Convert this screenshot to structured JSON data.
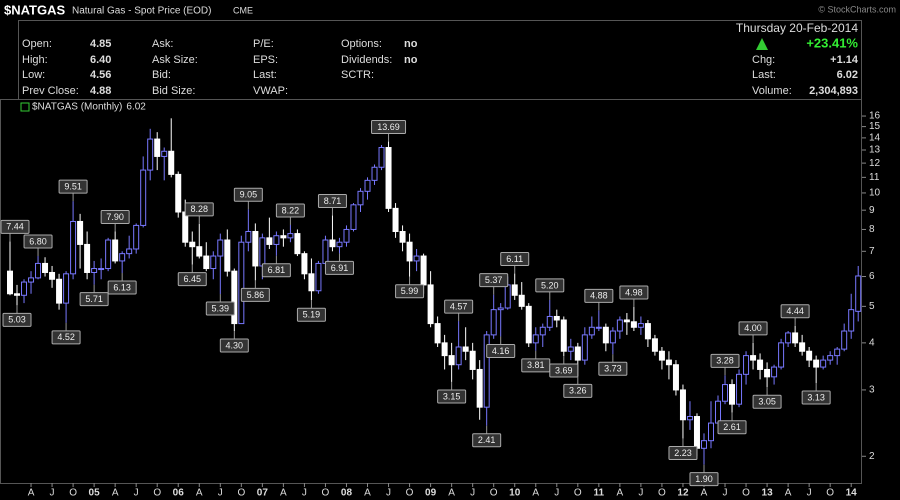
{
  "header": {
    "symbol": "$NATGAS",
    "name": "Natural Gas - Spot Price (EOD)",
    "exchange": "CME",
    "copyright": "© StockCharts.com",
    "date": "Thursday 20-Feb-2014",
    "change_pct": "+23.41%",
    "quote": [
      [
        {
          "label": "Open:",
          "value": "4.85"
        },
        {
          "label": "High:",
          "value": "6.40"
        },
        {
          "label": "Low:",
          "value": "4.56"
        },
        {
          "label": "Prev Close:",
          "value": "4.88"
        }
      ],
      [
        {
          "label": "Ask:"
        },
        {
          "label": "Ask Size:"
        },
        {
          "label": "Bid:"
        },
        {
          "label": "Bid Size:"
        }
      ],
      [
        {
          "label": "P/E:"
        },
        {
          "label": "EPS:"
        },
        {
          "label": "Last:"
        },
        {
          "label": "VWAP:"
        }
      ],
      [
        {
          "label": "Options:",
          "value": "no"
        },
        {
          "label": "Dividends:",
          "value": "no"
        },
        {
          "label": "SCTR:"
        }
      ]
    ],
    "summary": [
      {
        "label": "Chg:",
        "value": "+1.14"
      },
      {
        "label": "Last:",
        "value": "6.02"
      },
      {
        "label": "Volume:",
        "value": "2,304,893"
      }
    ]
  },
  "chart_data": {
    "type": "candlestick",
    "log_scale": true,
    "grid": false,
    "x": [
      "2004-01",
      "2004-02",
      "2004-03",
      "2004-04",
      "2004-05",
      "2004-06",
      "2004-07",
      "2004-08",
      "2004-09",
      "2004-10",
      "2004-11",
      "2004-12",
      "2005-01",
      "2005-02",
      "2005-03",
      "2005-04",
      "2005-05",
      "2005-06",
      "2005-07",
      "2005-08",
      "2005-09",
      "2005-10",
      "2005-11",
      "2005-12",
      "2006-01",
      "2006-02",
      "2006-03",
      "2006-04",
      "2006-05",
      "2006-06",
      "2006-07",
      "2006-08",
      "2006-09",
      "2006-10",
      "2006-11",
      "2006-12",
      "2007-01",
      "2007-02",
      "2007-03",
      "2007-04",
      "2007-05",
      "2007-06",
      "2007-07",
      "2007-08",
      "2007-09",
      "2007-10",
      "2007-11",
      "2007-12",
      "2008-01",
      "2008-02",
      "2008-03",
      "2008-04",
      "2008-05",
      "2008-06",
      "2008-07",
      "2008-08",
      "2008-09",
      "2008-10",
      "2008-11",
      "2008-12",
      "2009-01",
      "2009-02",
      "2009-03",
      "2009-04",
      "2009-05",
      "2009-06",
      "2009-07",
      "2009-08",
      "2009-09",
      "2009-10",
      "2009-11",
      "2009-12",
      "2010-01",
      "2010-02",
      "2010-03",
      "2010-04",
      "2010-05",
      "2010-06",
      "2010-07",
      "2010-08",
      "2010-09",
      "2010-10",
      "2010-11",
      "2010-12",
      "2011-01",
      "2011-02",
      "2011-03",
      "2011-04",
      "2011-05",
      "2011-06",
      "2011-07",
      "2011-08",
      "2011-09",
      "2011-10",
      "2011-11",
      "2011-12",
      "2012-01",
      "2012-02",
      "2012-03",
      "2012-04",
      "2012-05",
      "2012-06",
      "2012-07",
      "2012-08",
      "2012-09",
      "2012-10",
      "2012-11",
      "2012-12",
      "2013-01",
      "2013-02",
      "2013-03",
      "2013-04",
      "2013-05",
      "2013-06",
      "2013-07",
      "2013-08",
      "2013-09",
      "2013-10",
      "2013-11",
      "2013-12",
      "2014-01",
      "2014-02"
    ],
    "series": [
      {
        "name": "$NATGAS (Monthly)",
        "up_color": "#7878ff",
        "down_color": "#ffffff",
        "legend_color": "#33cc33",
        "open": [
          6.2,
          5.4,
          5.35,
          5.8,
          5.95,
          6.5,
          6.15,
          5.9,
          5.1,
          6.1,
          8.4,
          7.3,
          6.15,
          6.3,
          6.3,
          7.5,
          6.6,
          6.9,
          7.1,
          8.2,
          11.5,
          13.9,
          12.5,
          12.9,
          11.2,
          8.9,
          7.4,
          7.2,
          6.8,
          6.3,
          6.8,
          7.5,
          6.2,
          4.5,
          7.4,
          7.9,
          6.4,
          7.6,
          7.3,
          7.7,
          7.6,
          7.8,
          6.9,
          6.1,
          5.5,
          6.5,
          7.5,
          7.2,
          7.4,
          8.0,
          9.3,
          10.1,
          10.8,
          11.7,
          13.2,
          9.1,
          7.9,
          7.4,
          6.6,
          6.8,
          5.7,
          4.5,
          4.0,
          3.7,
          3.5,
          3.9,
          3.8,
          3.4,
          2.7,
          4.2,
          4.9,
          4.95,
          5.7,
          5.35,
          5.0,
          4.0,
          4.2,
          4.4,
          4.7,
          4.6,
          3.8,
          3.9,
          3.6,
          4.2,
          4.4,
          4.4,
          4.0,
          4.3,
          4.6,
          4.55,
          4.4,
          4.5,
          4.1,
          3.8,
          3.6,
          3.5,
          3.0,
          2.5,
          2.55,
          2.1,
          2.2,
          2.45,
          2.8,
          3.1,
          2.75,
          3.3,
          3.7,
          3.6,
          3.4,
          3.25,
          3.45,
          4.0,
          4.25,
          4.0,
          3.8,
          3.6,
          3.45,
          3.6,
          3.7,
          3.85,
          4.3,
          4.85
        ],
        "high": [
          7.44,
          5.7,
          5.9,
          6.2,
          6.8,
          6.75,
          6.4,
          6.1,
          6.2,
          9.51,
          8.8,
          7.9,
          6.6,
          6.7,
          7.6,
          7.9,
          7.0,
          7.7,
          8.3,
          12.5,
          14.8,
          14.5,
          13.2,
          15.78,
          11.4,
          9.6,
          7.9,
          8.28,
          7.4,
          7.0,
          7.8,
          8.0,
          6.3,
          7.7,
          9.05,
          8.3,
          7.8,
          8.6,
          7.9,
          8.0,
          8.22,
          8.0,
          7.0,
          6.7,
          6.6,
          7.7,
          8.71,
          7.6,
          8.2,
          9.4,
          10.3,
          11.0,
          11.9,
          13.4,
          13.69,
          9.4,
          8.2,
          7.8,
          7.1,
          6.9,
          6.2,
          4.7,
          4.2,
          4.0,
          4.57,
          4.4,
          4.0,
          3.6,
          4.3,
          5.37,
          5.1,
          6.0,
          6.11,
          5.8,
          5.1,
          4.4,
          4.5,
          5.2,
          4.9,
          4.7,
          4.1,
          4.0,
          4.4,
          4.7,
          4.88,
          4.5,
          4.4,
          4.7,
          4.8,
          4.98,
          4.7,
          4.6,
          4.2,
          3.9,
          3.8,
          3.6,
          3.1,
          2.8,
          2.6,
          2.3,
          2.8,
          2.9,
          3.28,
          3.2,
          3.4,
          3.8,
          4.0,
          3.75,
          3.55,
          3.5,
          4.1,
          4.3,
          4.44,
          4.2,
          3.9,
          3.7,
          3.7,
          3.8,
          3.9,
          4.5,
          5.4,
          6.4
        ],
        "low": [
          5.35,
          5.03,
          5.1,
          5.4,
          5.9,
          6.0,
          5.6,
          4.9,
          4.52,
          5.9,
          6.3,
          5.9,
          5.71,
          5.9,
          6.2,
          6.5,
          6.13,
          6.7,
          6.9,
          8.1,
          10.8,
          11.5,
          10.8,
          11.0,
          8.6,
          7.2,
          6.45,
          6.7,
          6.2,
          5.9,
          5.39,
          6.0,
          4.3,
          4.5,
          7.0,
          5.86,
          5.9,
          7.1,
          6.81,
          7.2,
          7.4,
          6.8,
          5.9,
          5.19,
          5.4,
          6.3,
          7.0,
          6.91,
          7.2,
          7.9,
          8.9,
          9.6,
          10.5,
          11.5,
          8.9,
          7.6,
          7.0,
          5.99,
          6.2,
          5.4,
          4.4,
          3.9,
          3.4,
          3.15,
          3.4,
          3.6,
          3.2,
          2.5,
          2.41,
          4.1,
          4.16,
          4.9,
          5.2,
          4.9,
          3.9,
          3.81,
          3.9,
          4.3,
          4.4,
          3.69,
          3.6,
          3.26,
          3.5,
          4.1,
          4.3,
          3.8,
          3.73,
          4.1,
          4.2,
          4.3,
          4.2,
          3.9,
          3.7,
          3.4,
          3.2,
          2.9,
          2.23,
          2.35,
          2.0,
          1.9,
          2.1,
          2.3,
          2.75,
          2.61,
          2.7,
          3.1,
          3.4,
          3.2,
          3.05,
          3.1,
          3.4,
          3.9,
          3.9,
          3.7,
          3.45,
          3.13,
          3.4,
          3.5,
          3.5,
          3.8,
          4.1,
          4.56
        ],
        "close": [
          5.4,
          5.35,
          5.8,
          5.95,
          6.5,
          6.15,
          5.9,
          5.1,
          6.1,
          8.4,
          7.3,
          6.15,
          6.3,
          6.3,
          7.5,
          6.6,
          6.9,
          7.1,
          8.2,
          11.5,
          13.9,
          12.5,
          12.9,
          11.2,
          8.9,
          7.4,
          7.2,
          6.8,
          6.3,
          6.8,
          7.5,
          6.2,
          4.5,
          7.4,
          7.9,
          6.4,
          7.6,
          7.3,
          7.7,
          7.6,
          7.8,
          6.9,
          6.1,
          5.5,
          6.5,
          7.5,
          7.2,
          7.4,
          8.0,
          9.3,
          10.1,
          10.8,
          11.7,
          13.2,
          9.1,
          7.9,
          7.4,
          6.6,
          6.8,
          5.7,
          4.5,
          4.0,
          3.7,
          3.5,
          3.9,
          3.8,
          3.4,
          2.7,
          4.2,
          4.9,
          4.95,
          5.7,
          5.35,
          5.0,
          4.0,
          4.2,
          4.4,
          4.7,
          4.6,
          3.8,
          3.9,
          3.6,
          4.2,
          4.4,
          4.4,
          4.0,
          4.3,
          4.6,
          4.55,
          4.4,
          4.5,
          4.1,
          3.8,
          3.6,
          3.5,
          3.0,
          2.5,
          2.55,
          2.1,
          2.2,
          2.45,
          2.8,
          3.1,
          2.75,
          3.3,
          3.7,
          3.6,
          3.4,
          3.25,
          3.45,
          4.0,
          4.25,
          4.0,
          3.8,
          3.6,
          3.45,
          3.6,
          3.7,
          3.85,
          4.3,
          4.9,
          6.02
        ]
      }
    ],
    "annotations": {
      "x": [
        "2004-01",
        "2004-02",
        "2004-05",
        "2004-09",
        "2004-10",
        "2005-01",
        "2005-04",
        "2005-05",
        "2006-03",
        "2006-04",
        "2006-07",
        "2006-09",
        "2006-11",
        "2006-12",
        "2007-03",
        "2007-05",
        "2007-08",
        "2007-11",
        "2007-12",
        "2008-07",
        "2008-10",
        "2009-04",
        "2009-05",
        "2009-09",
        "2009-10",
        "2009-11",
        "2010-01",
        "2010-04",
        "2010-06",
        "2010-08",
        "2010-10",
        "2011-01",
        "2011-03",
        "2011-06",
        "2012-01",
        "2012-04",
        "2012-07",
        "2012-08",
        "2012-11",
        "2013-01",
        "2013-05",
        "2013-08"
      ],
      "values": [
        7.44,
        5.03,
        6.8,
        4.52,
        9.51,
        5.71,
        7.9,
        6.13,
        6.45,
        8.28,
        5.39,
        4.3,
        9.05,
        5.86,
        6.81,
        8.22,
        5.19,
        8.71,
        6.91,
        13.69,
        5.99,
        3.15,
        4.57,
        2.41,
        5.37,
        4.16,
        6.11,
        3.81,
        5.2,
        3.69,
        3.26,
        4.88,
        3.73,
        4.98,
        2.23,
        1.9,
        3.28,
        2.61,
        4.0,
        3.05,
        4.44,
        3.13
      ],
      "value_labels": [
        "7.44",
        "5.03",
        "6.80",
        "4.52",
        "9.51",
        "5.71",
        "7.90",
        "6.13",
        "6.45",
        "8.28",
        "5.39",
        "4.30",
        "9.05",
        "5.86",
        "6.81",
        "8.22",
        "5.19",
        "8.71",
        "6.91",
        "13.69",
        "5.99",
        "3.15",
        "4.57",
        "2.41",
        "5.37",
        "4.16",
        "6.11",
        "3.81",
        "5.20",
        "3.69",
        "3.26",
        "4.88",
        "3.73",
        "4.98",
        "2.23",
        "1.90",
        "3.28",
        "2.61",
        "4.00",
        "3.05",
        "4.44",
        "3.13"
      ]
    },
    "ylim": [
      1.73,
      16.4
    ],
    "yticks": [
      2,
      3,
      4,
      5,
      6,
      7,
      8,
      9,
      10,
      11,
      12,
      13,
      14,
      15,
      16
    ],
    "xticks": [
      {
        "value": "2004-04",
        "label": "A"
      },
      {
        "value": "2004-07",
        "label": "J"
      },
      {
        "value": "2004-10",
        "label": "O"
      },
      {
        "value": "2005-01",
        "label": "05"
      },
      {
        "value": "2005-04",
        "label": "A"
      },
      {
        "value": "2005-07",
        "label": "J"
      },
      {
        "value": "2005-10",
        "label": "O"
      },
      {
        "value": "2006-01",
        "label": "06"
      },
      {
        "value": "2006-04",
        "label": "A"
      },
      {
        "value": "2006-07",
        "label": "J"
      },
      {
        "value": "2006-10",
        "label": "O"
      },
      {
        "value": "2007-01",
        "label": "07"
      },
      {
        "value": "2007-04",
        "label": "A"
      },
      {
        "value": "2007-07",
        "label": "J"
      },
      {
        "value": "2007-10",
        "label": "O"
      },
      {
        "value": "2008-01",
        "label": "08"
      },
      {
        "value": "2008-04",
        "label": "A"
      },
      {
        "value": "2008-07",
        "label": "J"
      },
      {
        "value": "2008-10",
        "label": "O"
      },
      {
        "value": "2009-01",
        "label": "09"
      },
      {
        "value": "2009-04",
        "label": "A"
      },
      {
        "value": "2009-07",
        "label": "J"
      },
      {
        "value": "2009-10",
        "label": "O"
      },
      {
        "value": "2010-01",
        "label": "10"
      },
      {
        "value": "2010-04",
        "label": "A"
      },
      {
        "value": "2010-07",
        "label": "J"
      },
      {
        "value": "2010-10",
        "label": "O"
      },
      {
        "value": "2011-01",
        "label": "11"
      },
      {
        "value": "2011-04",
        "label": "A"
      },
      {
        "value": "2011-07",
        "label": "J"
      },
      {
        "value": "2011-10",
        "label": "O"
      },
      {
        "value": "2012-01",
        "label": "12"
      },
      {
        "value": "2012-04",
        "label": "A"
      },
      {
        "value": "2012-07",
        "label": "J"
      },
      {
        "value": "2012-10",
        "label": "O"
      },
      {
        "value": "2013-01",
        "label": "13"
      },
      {
        "value": "2013-04",
        "label": "A"
      },
      {
        "value": "2013-07",
        "label": "J"
      },
      {
        "value": "2013-10",
        "label": "O"
      },
      {
        "value": "2014-01",
        "label": "14"
      }
    ]
  }
}
